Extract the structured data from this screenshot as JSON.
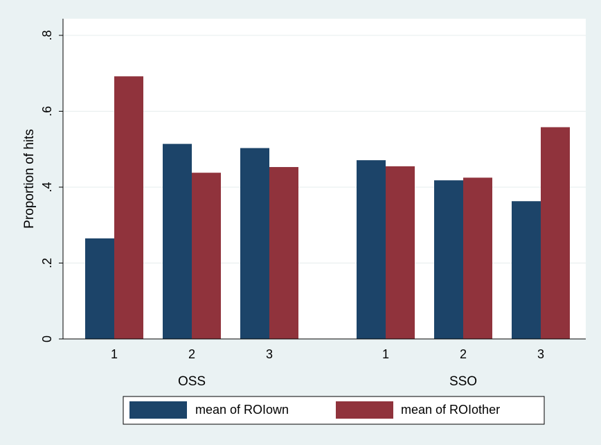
{
  "chart_data": {
    "type": "bar",
    "ylabel": "Proportion of hits",
    "ylim": [
      0,
      0.8
    ],
    "y_ticks": [
      0,
      0.2,
      0.4,
      0.6,
      0.8
    ],
    "y_tick_labels": [
      "0",
      ".2",
      ".4",
      ".6",
      ".8"
    ],
    "grid": true,
    "legend_position": "bottom",
    "groups": [
      {
        "label": "OSS",
        "categories": [
          "1",
          "2",
          "3"
        ]
      },
      {
        "label": "SSO",
        "categories": [
          "1",
          "2",
          "3"
        ]
      }
    ],
    "series": [
      {
        "name": "mean of ROIown",
        "color": "#1c4469",
        "values": [
          0.265,
          0.514,
          0.503,
          0.471,
          0.418,
          0.363
        ]
      },
      {
        "name": "mean of ROIother",
        "color": "#90333c",
        "values": [
          0.692,
          0.438,
          0.453,
          0.455,
          0.425,
          0.558
        ]
      }
    ]
  }
}
